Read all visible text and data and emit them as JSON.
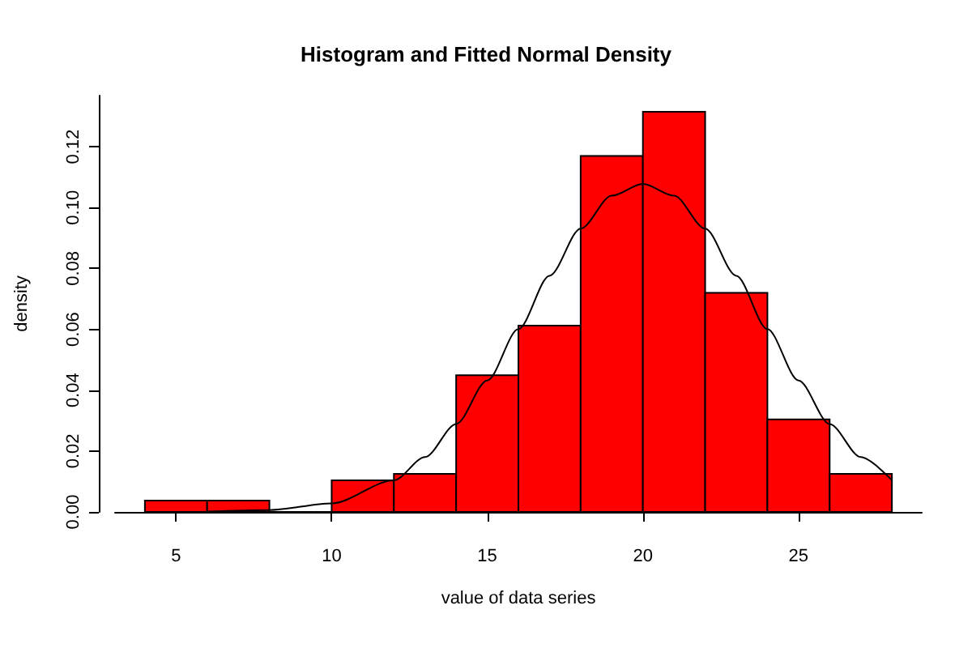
{
  "chart_data": {
    "type": "histogram",
    "title": "Histogram and Fitted Normal Density",
    "xlabel": "value of data series",
    "ylabel": "density",
    "bins": [
      4,
      6,
      8,
      10,
      12,
      14,
      16,
      18,
      20,
      22,
      24,
      26,
      28
    ],
    "values": [
      0.0037,
      0.0037,
      0,
      0.0104,
      0.0125,
      0.0449,
      0.0612,
      0.117,
      0.1315,
      0.072,
      0.0304,
      0.0125
    ],
    "color": "#ff0000",
    "series": [
      {
        "type": "line",
        "color": "#000000",
        "x": [
          6,
          8,
          10,
          12,
          13,
          14,
          15,
          16,
          17,
          18,
          19,
          20,
          21,
          22,
          23,
          24,
          25,
          26,
          27,
          28
        ],
        "values": [
          0.0001,
          0.0006,
          0.0028,
          0.0104,
          0.018,
          0.0289,
          0.0432,
          0.0601,
          0.0776,
          0.0931,
          0.1039,
          0.1078,
          0.1039,
          0.0931,
          0.0776,
          0.0601,
          0.0432,
          0.0289,
          0.018,
          0.0104
        ]
      }
    ],
    "xlim": [
      3.04,
      28.96
    ],
    "xticks": [
      5,
      10,
      15,
      20,
      25
    ],
    "ylim": [
      0,
      0.1368
    ],
    "yticks": [
      {
        "value": 0,
        "label": "0.00"
      },
      0.02,
      0.04,
      0.06,
      0.08,
      {
        "value": 0.1,
        "label": "0.10"
      },
      0.12
    ],
    "grid": false
  }
}
